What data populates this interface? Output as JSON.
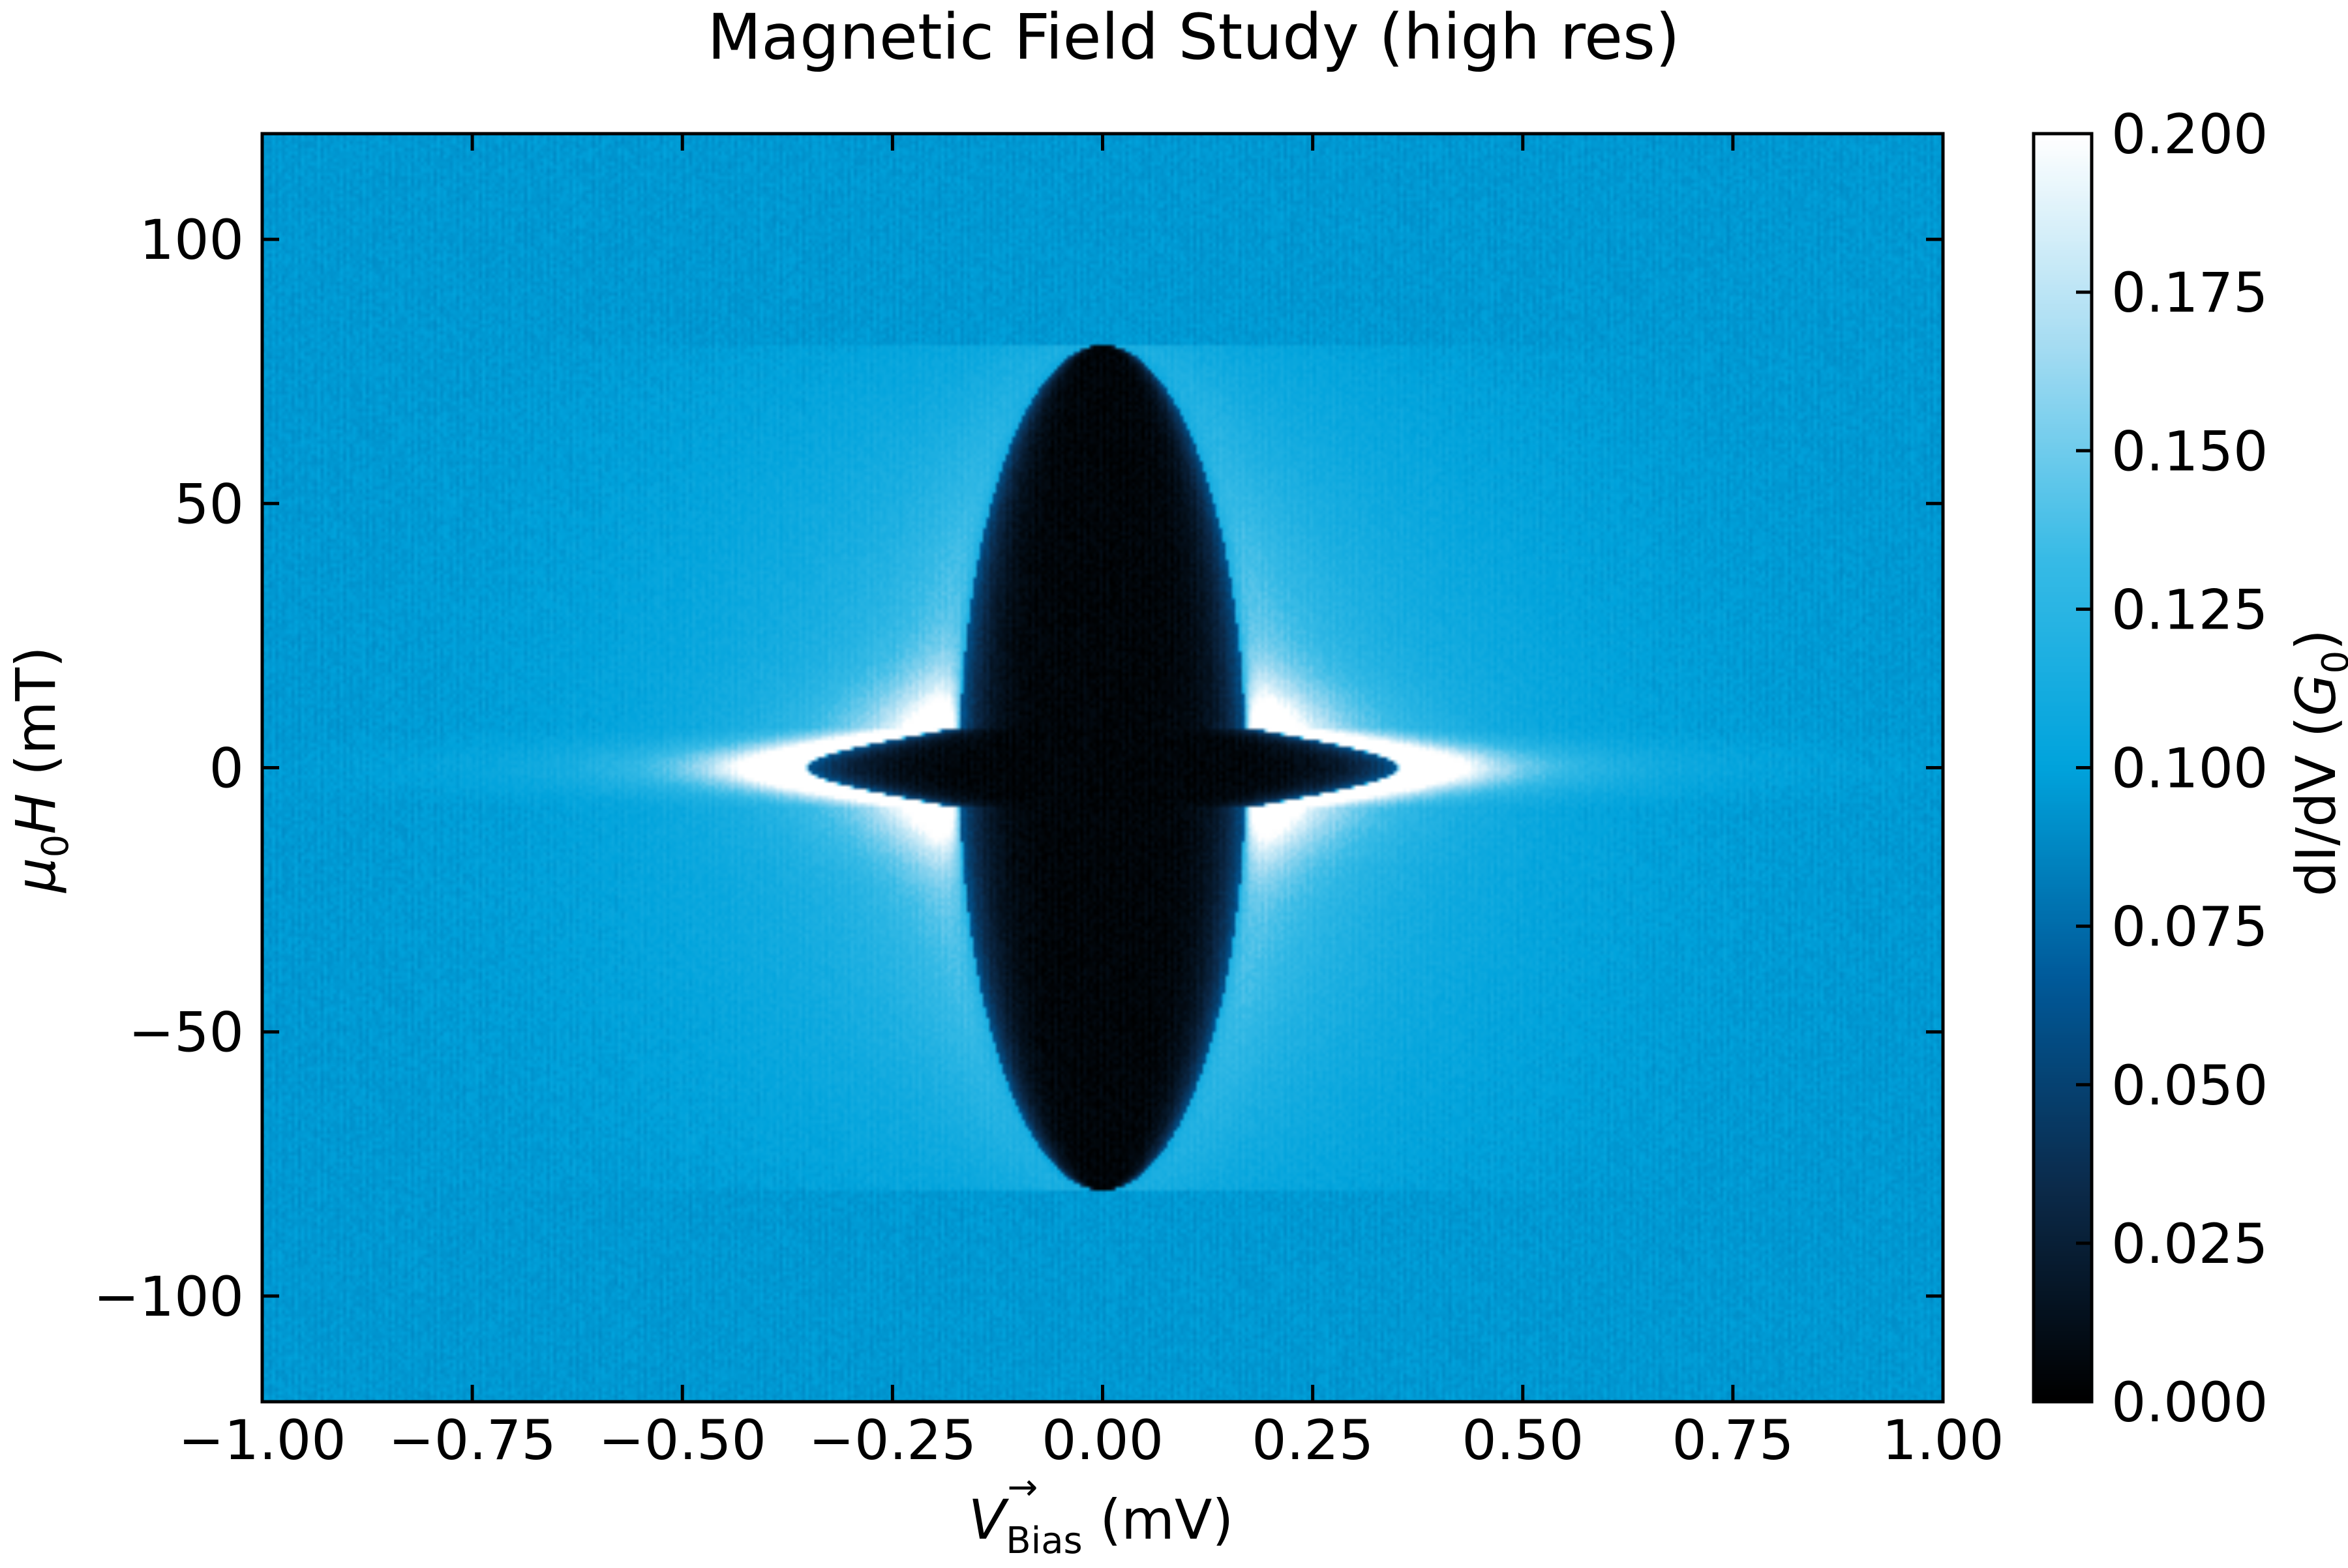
{
  "chart_data": {
    "type": "heatmap",
    "title": "Magnetic Field Study (high res)",
    "xlabel": {
      "symbol": "V",
      "subscript": "Bias",
      "accent": "→",
      "unit": "(mV)"
    },
    "ylabel": {
      "symbol": "μ",
      "subscript": "0",
      "symbol2": "H",
      "unit": "(mT)"
    },
    "colorbar_label": {
      "text_pre": "dI/dV (",
      "symbol": "G",
      "subscript": "0",
      "text_post": ")"
    },
    "xlim": [
      -1.0,
      1.0
    ],
    "ylim": [
      -120,
      120
    ],
    "clim": [
      0.0,
      0.2
    ],
    "x_ticks": [
      -1.0,
      -0.75,
      -0.5,
      -0.25,
      0.0,
      0.25,
      0.5,
      0.75,
      1.0
    ],
    "x_tick_labels": [
      "−1.00",
      "−0.75",
      "−0.50",
      "−0.25",
      "0.00",
      "0.25",
      "0.50",
      "0.75",
      "1.00"
    ],
    "y_ticks": [
      -100,
      -50,
      0,
      50,
      100
    ],
    "y_tick_labels": [
      "−100",
      "−50",
      "0",
      "50",
      "100"
    ],
    "colorbar_ticks": [
      0.0,
      0.025,
      0.05,
      0.075,
      0.1,
      0.125,
      0.15,
      0.175,
      0.2
    ],
    "colorbar_tick_labels": [
      "0.000",
      "0.025",
      "0.050",
      "0.075",
      "0.100",
      "0.125",
      "0.150",
      "0.175",
      "0.200"
    ],
    "colormap": [
      "#000000",
      "#0b2a4a",
      "#005a9a",
      "#00a3dc",
      "#38bbe6",
      "#a5dcf2",
      "#ffffff"
    ],
    "background_value": 0.095,
    "features": {
      "gap_center": {
        "x": 0.0,
        "y": 0.0,
        "value": 0.0
      },
      "gap_half_width_at_zero_field_mV": 0.35,
      "gap_closing_field_mT": 80,
      "coherence_peak_value": 0.2,
      "coherence_peak_bias_mV": 0.4
    }
  }
}
